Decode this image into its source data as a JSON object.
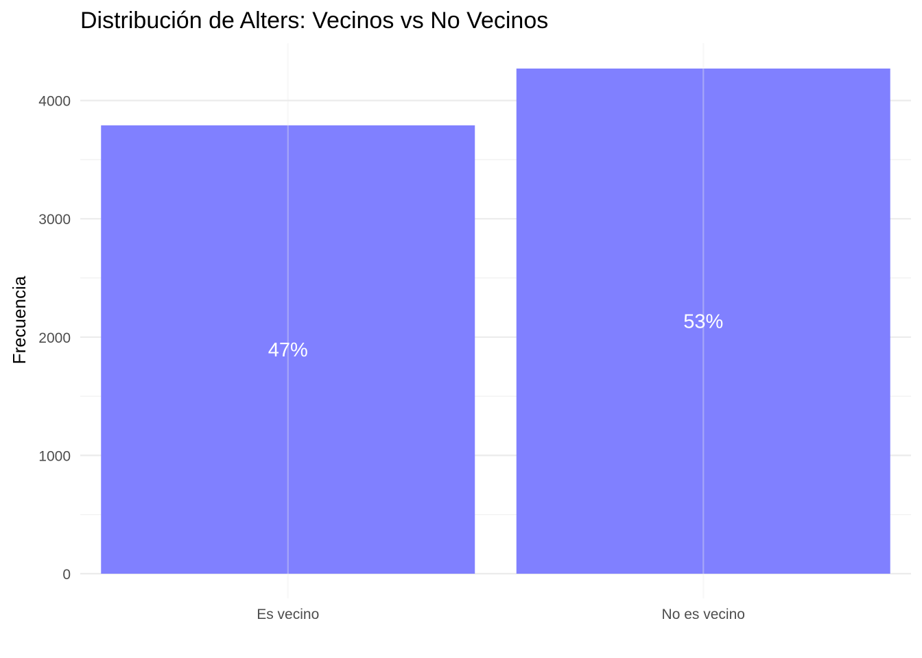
{
  "chart_data": {
    "type": "bar",
    "title": "Distribución de Alters: Vecinos vs No Vecinos",
    "xlabel": "",
    "ylabel": "Frecuencia",
    "categories": [
      "Es vecino",
      "No es vecino"
    ],
    "values": [
      3790,
      4270
    ],
    "bar_labels": [
      "47%",
      "53%"
    ],
    "ylim": [
      0,
      4500
    ],
    "y_ticks": [
      0,
      1000,
      2000,
      3000,
      4000
    ],
    "grid": true,
    "legend": "none",
    "bar_color": "#8080ff"
  }
}
